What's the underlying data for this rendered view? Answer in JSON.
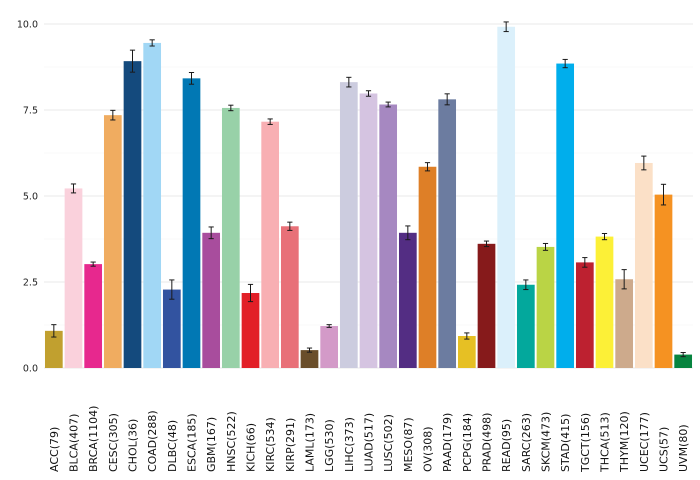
{
  "chart_data": {
    "type": "bar",
    "title": "",
    "xlabel": "",
    "ylabel": "",
    "ylim": [
      0,
      10.5
    ],
    "yticks": [
      0,
      2.5,
      5,
      7.5,
      10
    ],
    "ytick_labels": [
      "0.0",
      "2.5",
      "5.0",
      "7.5",
      "10.0"
    ],
    "grid": true,
    "legend": "none",
    "categories": [
      "ACC(79)",
      "BLCA(407)",
      "BRCA(1104)",
      "CESC(305)",
      "CHOL(36)",
      "COAD(288)",
      "DLBC(48)",
      "ESCA(185)",
      "GBM(167)",
      "HNSC(522)",
      "KICH(66)",
      "KIRC(534)",
      "KIRP(291)",
      "LAML(173)",
      "LGG(530)",
      "LIHC(373)",
      "LUAD(517)",
      "LUSC(502)",
      "MESO(87)",
      "OV(308)",
      "PAAD(179)",
      "PCPG(184)",
      "PRAD(498)",
      "READ(95)",
      "SARC(263)",
      "SKCM(473)",
      "STAD(415)",
      "TGCT(156)",
      "THCA(513)",
      "THYM(120)",
      "UCEC(177)",
      "UCS(57)",
      "UVM(80)"
    ],
    "values": [
      1.08,
      5.22,
      3.02,
      7.35,
      8.92,
      9.45,
      2.28,
      8.42,
      3.93,
      7.56,
      2.18,
      7.16,
      4.12,
      0.52,
      1.22,
      8.31,
      7.98,
      7.66,
      3.93,
      5.85,
      7.81,
      0.93,
      3.61,
      9.92,
      2.42,
      3.52,
      8.85,
      3.07,
      3.82,
      2.58,
      5.96,
      5.04,
      0.39
    ],
    "errors": [
      0.18,
      0.13,
      0.06,
      0.14,
      0.32,
      0.09,
      0.28,
      0.17,
      0.17,
      0.08,
      0.25,
      0.08,
      0.12,
      0.06,
      0.04,
      0.14,
      0.08,
      0.07,
      0.2,
      0.12,
      0.16,
      0.09,
      0.08,
      0.14,
      0.14,
      0.1,
      0.12,
      0.14,
      0.09,
      0.28,
      0.2,
      0.3,
      0.06
    ],
    "colors": [
      "#C1A02F",
      "#FAD1DC",
      "#E7288E",
      "#F0AC60",
      "#144A7D",
      "#A1D7F5",
      "#3253A0",
      "#0178B4",
      "#A84D9D",
      "#98D1A8",
      "#E21F27",
      "#F8AFB3",
      "#E87078",
      "#6A4E2A",
      "#D39AC8",
      "#CCCCDF",
      "#D5C4E1",
      "#A688C1",
      "#532D83",
      "#DE7F27",
      "#6C7CA0",
      "#E6C024",
      "#861A1B",
      "#DBF0FB",
      "#03A89C",
      "#BAD445",
      "#00AEEC",
      "#BD2130",
      "#FCF037",
      "#CDAA8C",
      "#FBE0C7",
      "#F59222",
      "#07843F"
    ]
  }
}
